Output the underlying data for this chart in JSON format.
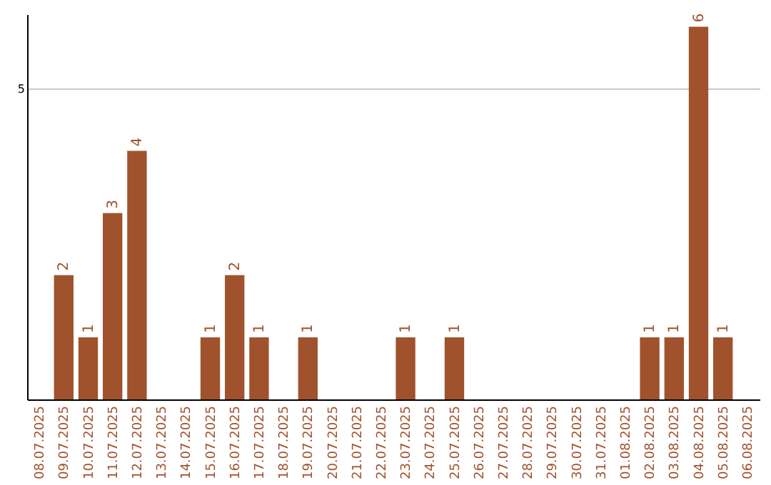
{
  "chart_data": {
    "type": "bar",
    "categories": [
      "08.07.2025",
      "09.07.2025",
      "10.07.2025",
      "11.07.2025",
      "12.07.2025",
      "13.07.2025",
      "14.07.2025",
      "15.07.2025",
      "16.07.2025",
      "17.07.2025",
      "18.07.2025",
      "19.07.2025",
      "20.07.2025",
      "21.07.2025",
      "22.07.2025",
      "23.07.2025",
      "24.07.2025",
      "25.07.2025",
      "26.07.2025",
      "27.07.2025",
      "28.07.2025",
      "29.07.2025",
      "30.07.2025",
      "31.07.2025",
      "01.08.2025",
      "02.08.2025",
      "03.08.2025",
      "04.08.2025",
      "05.08.2025",
      "06.08.2025"
    ],
    "values": [
      0,
      2,
      1,
      3,
      4,
      0,
      0,
      1,
      2,
      1,
      0,
      1,
      0,
      0,
      0,
      1,
      0,
      1,
      0,
      0,
      0,
      0,
      0,
      0,
      0,
      1,
      1,
      6,
      1,
      0
    ],
    "value_labels": [
      null,
      "2",
      "1",
      "3",
      "4",
      null,
      null,
      "1",
      "2",
      "1",
      null,
      "1",
      null,
      null,
      null,
      "1",
      null,
      "1",
      null,
      null,
      null,
      null,
      null,
      null,
      null,
      "1",
      "1",
      "6",
      "1",
      null
    ],
    "color": "#a0522d",
    "ylim": [
      0,
      6.2
    ],
    "yticks": [
      5
    ],
    "grid": "y"
  }
}
